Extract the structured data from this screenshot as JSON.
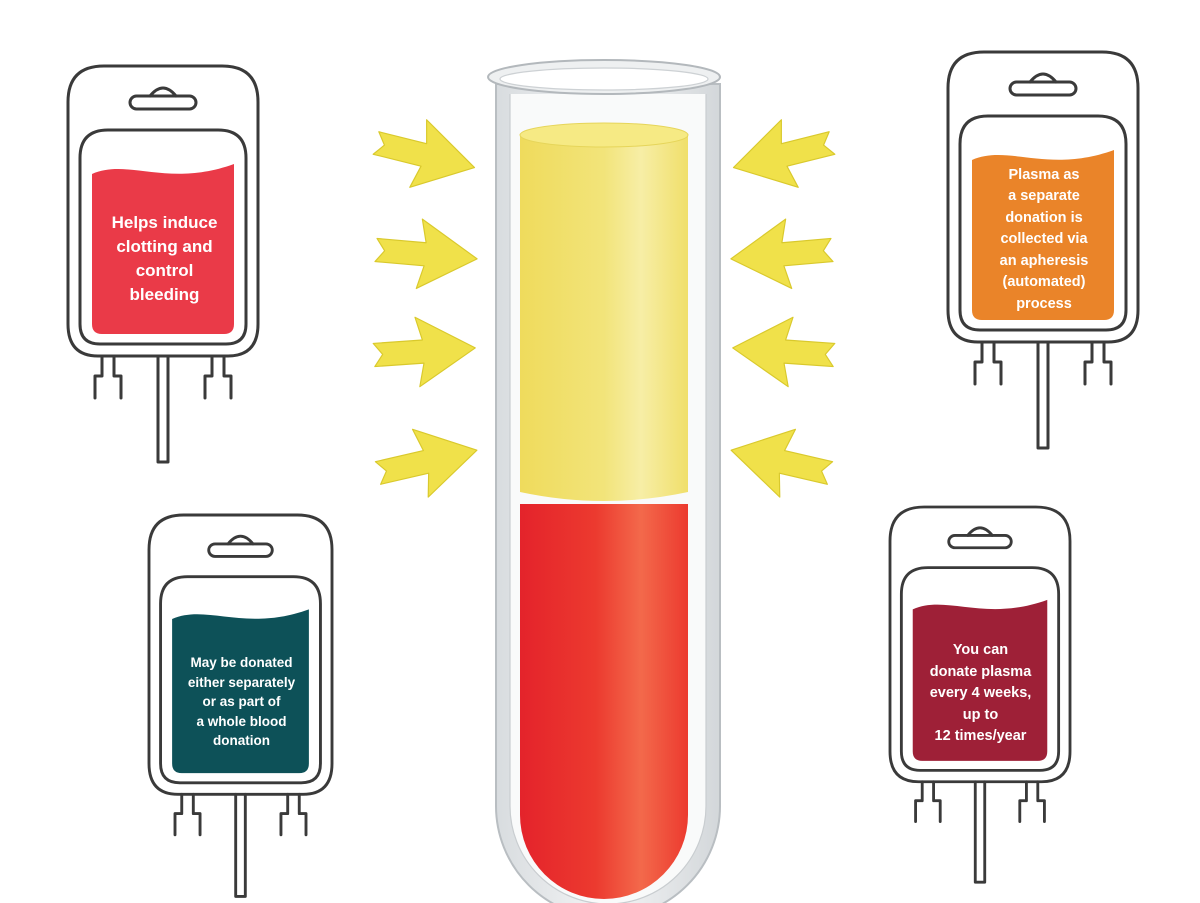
{
  "colors": {
    "outline": "#3a3a3a",
    "arrow": "#f0e14a",
    "arrow_edge": "#d9c92c",
    "plasma": "#f3e57a",
    "red_cells": "#ea2a2e",
    "bag_clotting": "#ea3a48",
    "bag_apheresis": "#ea8429",
    "bag_donated": "#0d5158",
    "bag_frequency": "#9e2037"
  },
  "bags": {
    "clotting": {
      "lines": [
        "Helps induce",
        "clotting and",
        "control",
        "bleeding"
      ]
    },
    "apheresis": {
      "lines": [
        "Plasma as",
        "a separate",
        "donation is",
        "collected via",
        "an apheresis",
        "(automated)",
        "process"
      ]
    },
    "donated": {
      "lines": [
        "May be donated",
        "either separately",
        "or as part of",
        "a whole blood",
        "donation"
      ]
    },
    "frequency": {
      "lines": [
        "You can",
        "donate plasma",
        "every 4 weeks,",
        "up to",
        "12 times/year"
      ]
    }
  },
  "icons": {
    "bags": "blood-bag-icon",
    "tube": "test-tube-icon",
    "arrows": "arrow-icon"
  }
}
